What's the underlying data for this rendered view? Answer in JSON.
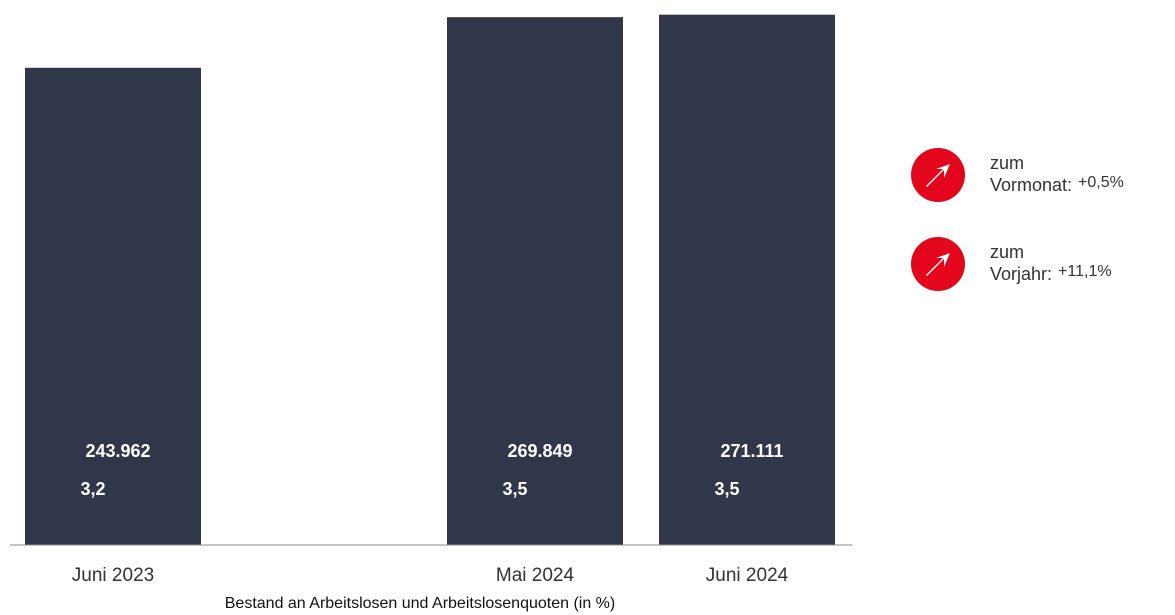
{
  "chart_data": {
    "type": "bar",
    "categories": [
      "Juni 2023",
      "Mai 2024",
      "Juni 2024"
    ],
    "values": [
      243962,
      269849,
      271111
    ],
    "value_labels": [
      "243.962",
      "269.849",
      "271.111"
    ],
    "rates": [
      3.2,
      3.5,
      3.5
    ],
    "rate_labels": [
      "3,2",
      "3,5",
      "3,5"
    ],
    "xlabel": "Bestand an Arbeitslosen und Arbeitslosenquoten (in %)",
    "ylabel": "",
    "grid": false,
    "legend": "none"
  },
  "trends": [
    {
      "line1": "zum",
      "line2": "Vormonat:",
      "value": "+0,5%",
      "direction": "up",
      "icon": "arrow-up-right-icon"
    },
    {
      "line1": "zum",
      "line2": "Vorjahr:",
      "value": "+11,1%",
      "direction": "up",
      "icon": "arrow-up-right-icon"
    }
  ],
  "colors": {
    "bar": "#30374a",
    "axis": "#888888",
    "trend_icon": "#e3051b"
  }
}
